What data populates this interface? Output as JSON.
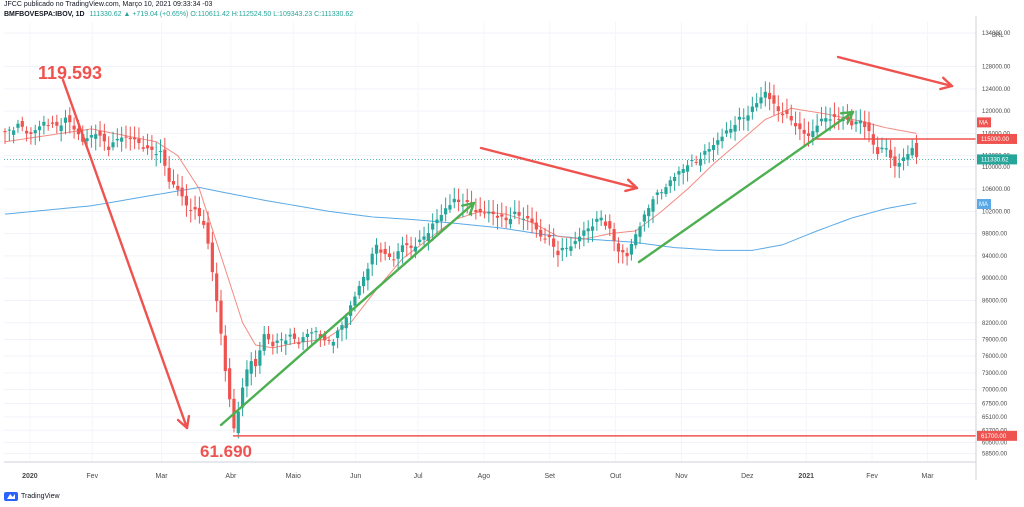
{
  "header": {
    "published_by": "JFCC publicado no TradingView.com, Março 10, 2021 09:33:34 -03",
    "symbol": "BMFBOVESPA:IBOV, 1D",
    "ohlc": "111330.62 ▲ +719.04 (+0.65%) O:110611.42 H:112524.50 L:109343.23 C:111330.62"
  },
  "footer": {
    "brand": "TradingView"
  },
  "colors": {
    "up": "#26a69a",
    "down": "#ef5350",
    "ma_fast": "#f28b82",
    "ma_slow": "#5aa9e6",
    "annotation_red": "#ef5350",
    "annotation_green": "#4caf50",
    "level_line": "#ef5350",
    "last_price": "#26a69a"
  },
  "chart_data": {
    "type": "candlestick",
    "currency": "BRL",
    "x_labels": [
      "2020",
      "Fev",
      "Mar",
      "Abr",
      "Maio",
      "Jun",
      "Jul",
      "Ago",
      "Set",
      "Out",
      "Nov",
      "Dez",
      "2021",
      "Fev",
      "Mar"
    ],
    "y_ticks": [
      134000,
      128000,
      124000,
      120000,
      116000,
      112000,
      110000,
      106000,
      102000,
      98000,
      94000,
      90000,
      86000,
      82000,
      79000,
      76000,
      73000,
      70000,
      67500,
      65100,
      62700,
      60500,
      58500
    ],
    "ylim": [
      57000,
      136000
    ],
    "price_path": [
      [
        0,
        116000
      ],
      [
        3,
        117500
      ],
      [
        6,
        115800
      ],
      [
        9,
        118000
      ],
      [
        12,
        117200
      ],
      [
        14,
        118600
      ],
      [
        16,
        117000
      ],
      [
        18,
        114500
      ],
      [
        21,
        116200
      ],
      [
        24,
        113500
      ],
      [
        27,
        115500
      ],
      [
        30,
        114800
      ],
      [
        33,
        113000
      ],
      [
        36,
        112600
      ],
      [
        38,
        107500
      ],
      [
        40,
        106000
      ],
      [
        42,
        103000
      ],
      [
        44,
        102000
      ],
      [
        46,
        100000
      ],
      [
        47,
        96000
      ],
      [
        48,
        91000
      ],
      [
        49,
        86000
      ],
      [
        50,
        80000
      ],
      [
        51,
        73500
      ],
      [
        52,
        68000
      ],
      [
        53,
        63000
      ],
      [
        54,
        66500
      ],
      [
        55,
        70000
      ],
      [
        56,
        73500
      ],
      [
        57,
        75500
      ],
      [
        58,
        74000
      ],
      [
        59,
        77000
      ],
      [
        60,
        80000
      ],
      [
        62,
        78000
      ],
      [
        64,
        79000
      ],
      [
        66,
        79500
      ],
      [
        68,
        78500
      ],
      [
        70,
        80000
      ],
      [
        72,
        80500
      ],
      [
        74,
        78500
      ],
      [
        76,
        79000
      ],
      [
        78,
        81500
      ],
      [
        80,
        85000
      ],
      [
        82,
        88500
      ],
      [
        84,
        92000
      ],
      [
        86,
        96000
      ],
      [
        88,
        94000
      ],
      [
        90,
        93500
      ],
      [
        92,
        96000
      ],
      [
        94,
        95500
      ],
      [
        96,
        96500
      ],
      [
        98,
        98500
      ],
      [
        100,
        100500
      ],
      [
        102,
        102500
      ],
      [
        104,
        104000
      ],
      [
        106,
        103500
      ],
      [
        108,
        103000
      ],
      [
        110,
        101500
      ],
      [
        112,
        102000
      ],
      [
        114,
        101000
      ],
      [
        116,
        100500
      ],
      [
        118,
        101500
      ],
      [
        120,
        101000
      ],
      [
        122,
        100000
      ],
      [
        124,
        97500
      ],
      [
        126,
        97000
      ],
      [
        128,
        94500
      ],
      [
        130,
        95500
      ],
      [
        132,
        96500
      ],
      [
        134,
        98500
      ],
      [
        136,
        99500
      ],
      [
        138,
        101000
      ],
      [
        140,
        98500
      ],
      [
        142,
        95000
      ],
      [
        144,
        94000
      ],
      [
        146,
        98000
      ],
      [
        148,
        101000
      ],
      [
        150,
        104500
      ],
      [
        152,
        105500
      ],
      [
        154,
        107500
      ],
      [
        156,
        109000
      ],
      [
        158,
        110500
      ],
      [
        160,
        111000
      ],
      [
        162,
        112500
      ],
      [
        164,
        114000
      ],
      [
        166,
        115500
      ],
      [
        168,
        117000
      ],
      [
        170,
        118500
      ],
      [
        172,
        119500
      ],
      [
        174,
        121500
      ],
      [
        176,
        123500
      ],
      [
        178,
        121000
      ],
      [
        180,
        119500
      ],
      [
        182,
        118500
      ],
      [
        184,
        116500
      ],
      [
        186,
        115500
      ],
      [
        188,
        117500
      ],
      [
        190,
        119000
      ],
      [
        192,
        118500
      ],
      [
        194,
        119000
      ],
      [
        196,
        117500
      ],
      [
        198,
        118500
      ],
      [
        200,
        116000
      ],
      [
        202,
        112500
      ],
      [
        204,
        113500
      ],
      [
        206,
        110000
      ],
      [
        208,
        111500
      ],
      [
        210,
        113500
      ],
      [
        211,
        111330
      ]
    ],
    "ma_fast_path": [
      [
        0,
        114500
      ],
      [
        20,
        116800
      ],
      [
        35,
        114500
      ],
      [
        40,
        112000
      ],
      [
        45,
        106000
      ],
      [
        50,
        94000
      ],
      [
        55,
        82000
      ],
      [
        58,
        78000
      ],
      [
        62,
        77500
      ],
      [
        68,
        78500
      ],
      [
        74,
        79000
      ],
      [
        80,
        82000
      ],
      [
        86,
        88000
      ],
      [
        92,
        93500
      ],
      [
        98,
        97000
      ],
      [
        104,
        100500
      ],
      [
        110,
        102000
      ],
      [
        116,
        101500
      ],
      [
        122,
        100000
      ],
      [
        128,
        97500
      ],
      [
        134,
        97000
      ],
      [
        140,
        98000
      ],
      [
        146,
        98500
      ],
      [
        152,
        102000
      ],
      [
        158,
        106000
      ],
      [
        164,
        110500
      ],
      [
        170,
        114500
      ],
      [
        176,
        118500
      ],
      [
        182,
        120500
      ],
      [
        190,
        119500
      ],
      [
        198,
        118200
      ],
      [
        204,
        117000
      ],
      [
        211,
        116000
      ]
    ],
    "ma_slow_path": [
      [
        0,
        101500
      ],
      [
        20,
        103000
      ],
      [
        35,
        105000
      ],
      [
        45,
        106300
      ],
      [
        50,
        105500
      ],
      [
        60,
        104000
      ],
      [
        75,
        102000
      ],
      [
        85,
        101000
      ],
      [
        95,
        100500
      ],
      [
        105,
        99800
      ],
      [
        115,
        99000
      ],
      [
        125,
        97800
      ],
      [
        135,
        97000
      ],
      [
        145,
        96500
      ],
      [
        155,
        95500
      ],
      [
        165,
        95000
      ],
      [
        173,
        95000
      ],
      [
        180,
        96000
      ],
      [
        188,
        98500
      ],
      [
        196,
        100800
      ],
      [
        204,
        102500
      ],
      [
        211,
        103500
      ]
    ],
    "levels": [
      {
        "label": "115000.00",
        "value": 115000,
        "from": 187,
        "to": 211
      },
      {
        "label": "61700.00",
        "value": 61700,
        "from": 53,
        "to": 222
      }
    ],
    "last_price": {
      "label": "111330.62",
      "value": 111330.62
    },
    "ma_labels": [
      "MA",
      "MA"
    ],
    "annotations": [
      {
        "text": "119.593",
        "value": 119593
      },
      {
        "text": "61.690",
        "value": 61690
      }
    ]
  }
}
